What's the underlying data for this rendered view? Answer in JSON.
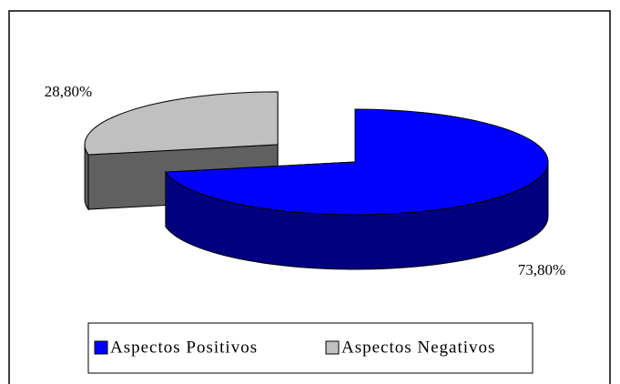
{
  "chart_data": {
    "type": "pie",
    "categories": [
      "Aspectos Positivos",
      "Aspectos Negativos"
    ],
    "values": [
      73.8,
      28.8
    ],
    "value_labels": [
      "73,80%",
      "28,80%"
    ],
    "colors": [
      "#0000ff",
      "#c0c0c0"
    ],
    "side_colors": [
      "#000080",
      "#606060"
    ],
    "legend": "bottom"
  }
}
